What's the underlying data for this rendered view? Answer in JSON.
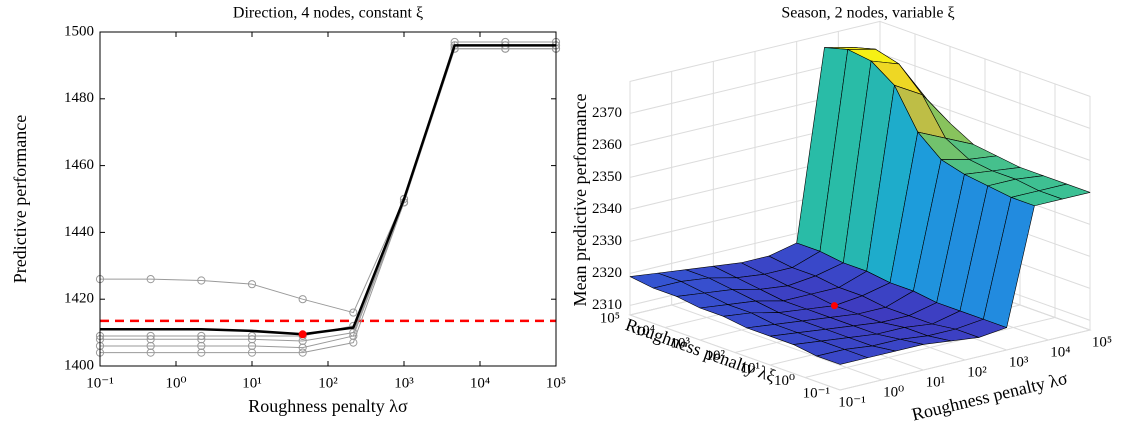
{
  "chart_data": [
    {
      "type": "line",
      "title": "Direction, 4 nodes, constant ξ",
      "xlabel": "Roughness penalty λσ",
      "ylabel": "Predictive performance",
      "x": [
        0.1,
        0.4642,
        2.154,
        10,
        46.42,
        215.4,
        1000,
        4642,
        21544,
        100000
      ],
      "xscale": "log",
      "xlim": [
        0.1,
        100000
      ],
      "xticks": [
        {
          "value": 0.1,
          "label": "10⁻¹"
        },
        {
          "value": 1,
          "label": "10⁰"
        },
        {
          "value": 10,
          "label": "10¹"
        },
        {
          "value": 100,
          "label": "10²"
        },
        {
          "value": 1000,
          "label": "10³"
        },
        {
          "value": 10000,
          "label": "10⁴"
        },
        {
          "value": 100000,
          "label": "10⁵"
        }
      ],
      "ylim": [
        1400,
        1500
      ],
      "yticks": [
        1400,
        1420,
        1440,
        1460,
        1480,
        1500
      ],
      "series": [
        {
          "color": "#9a9a9a",
          "marker": "circle",
          "line_width": 1,
          "values": [
            1426,
            1426,
            1425.6,
            1424.5,
            1420,
            1416,
            1450,
            1497,
            1497,
            1497
          ]
        },
        {
          "color": "#9a9a9a",
          "marker": "circle",
          "line_width": 1,
          "values": [
            1409,
            1409,
            1409,
            1409,
            1409,
            1412,
            1450,
            1496,
            1496,
            1496
          ]
        },
        {
          "color": "#9a9a9a",
          "marker": "circle",
          "line_width": 1,
          "values": [
            1408,
            1408,
            1408,
            1408,
            1407.5,
            1410,
            1449,
            1496,
            1496,
            1496
          ]
        },
        {
          "color": "#9a9a9a",
          "marker": "circle",
          "line_width": 1,
          "values": [
            1406,
            1406,
            1406,
            1406,
            1405.5,
            1409,
            1449,
            1495,
            1495,
            1495
          ]
        },
        {
          "color": "#9a9a9a",
          "marker": "circle",
          "line_width": 1,
          "values": [
            1404,
            1404,
            1404,
            1404,
            1404,
            1407,
            1449,
            1495,
            1495,
            1495
          ]
        },
        {
          "color": "#000000",
          "marker": "none",
          "line_width": 2.5,
          "values": [
            1411,
            1411,
            1411,
            1410.5,
            1409.5,
            1411.5,
            1450,
            1496,
            1496,
            1496
          ]
        }
      ],
      "reference_line": {
        "y": 1413.5,
        "color": "#ff0000",
        "style": "dashed"
      },
      "highlight": {
        "x": 46.42,
        "y": 1409.5,
        "color": "#ff0000"
      }
    },
    {
      "type": "surface",
      "title": "Season, 2 nodes, variable ξ",
      "xlabel": "Roughness penalty λσ",
      "ylabel": "Roughness penalty λξ",
      "zlabel": "Mean predictive performance",
      "x": [
        0.1,
        0.4642,
        2.154,
        10,
        46.42,
        215.4,
        1000,
        4642,
        21544,
        100000
      ],
      "y": [
        0.1,
        0.4642,
        2.154,
        10,
        46.42,
        215.4,
        1000,
        4642,
        21544,
        100000
      ],
      "xscale": "log",
      "yscale": "log",
      "xlim": [
        0.1,
        100000
      ],
      "ylim": [
        0.1,
        100000
      ],
      "zlim": [
        2307,
        2380
      ],
      "xticks": [
        {
          "value": 0.1,
          "label": "10⁻¹"
        },
        {
          "value": 1,
          "label": "10⁰"
        },
        {
          "value": 10,
          "label": "10¹"
        },
        {
          "value": 100,
          "label": "10²"
        },
        {
          "value": 1000,
          "label": "10³"
        },
        {
          "value": 10000,
          "label": "10⁴"
        },
        {
          "value": 100000,
          "label": "10⁵"
        }
      ],
      "yticks": [
        {
          "value": 0.1,
          "label": "10⁻¹"
        },
        {
          "value": 1,
          "label": "10⁰"
        },
        {
          "value": 10,
          "label": "10¹"
        },
        {
          "value": 100,
          "label": "10²"
        },
        {
          "value": 1000,
          "label": "10³"
        },
        {
          "value": 10000,
          "label": "10⁴"
        },
        {
          "value": 100000,
          "label": "10⁵"
        }
      ],
      "zticks": [
        2310,
        2320,
        2330,
        2340,
        2350,
        2360,
        2370
      ],
      "colormap": "parula",
      "z": [
        [
          2315,
          2315,
          2315,
          2315,
          2314,
          2313,
          2314,
          2350,
          2350,
          2350
        ],
        [
          2315,
          2315,
          2314,
          2314,
          2313,
          2313,
          2314,
          2350,
          2350,
          2350
        ],
        [
          2316,
          2315,
          2314,
          2313,
          2313,
          2312,
          2314,
          2351,
          2351,
          2350
        ],
        [
          2316,
          2315,
          2314,
          2313,
          2312,
          2312,
          2314,
          2352,
          2351,
          2350
        ],
        [
          2316,
          2315,
          2314,
          2313,
          2312,
          2312,
          2315,
          2354,
          2352,
          2351
        ],
        [
          2317,
          2316,
          2314,
          2313,
          2312,
          2313,
          2315,
          2360,
          2356,
          2352
        ],
        [
          2317,
          2316,
          2315,
          2313,
          2313,
          2313,
          2316,
          2372,
          2367,
          2356
        ],
        [
          2318,
          2317,
          2316,
          2314,
          2313,
          2314,
          2316,
          2377,
          2374,
          2361
        ],
        [
          2318,
          2318,
          2317,
          2315,
          2314,
          2314,
          2317,
          2378,
          2376,
          2364
        ],
        [
          2319,
          2318,
          2317,
          2316,
          2315,
          2315,
          2317,
          2376,
          2374,
          2364
        ]
      ],
      "highlight": {
        "x": 46.42,
        "y": 215.4,
        "z": 2312,
        "color": "#ff0000"
      }
    }
  ]
}
